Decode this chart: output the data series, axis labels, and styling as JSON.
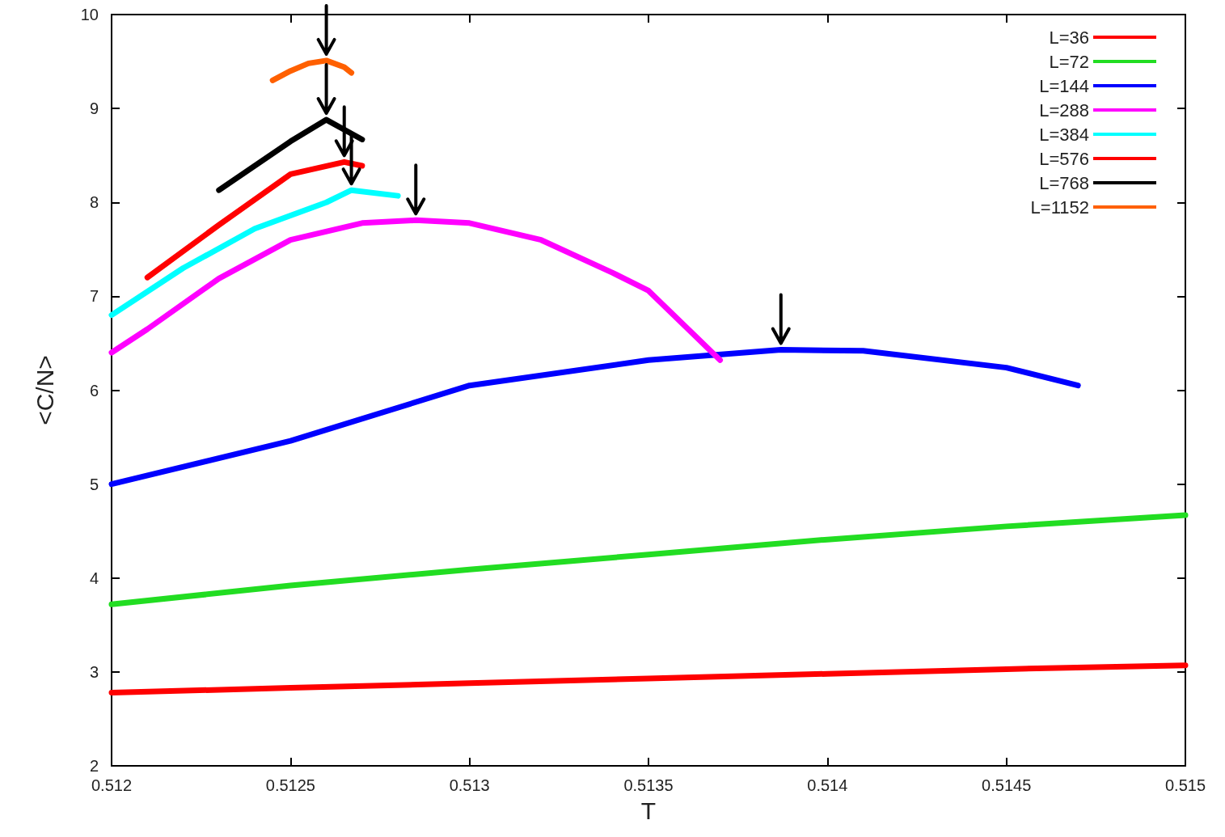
{
  "chart_data": {
    "type": "line",
    "xlabel": "T",
    "ylabel": "<C/N>",
    "xlim": [
      0.512,
      0.515
    ],
    "xticks": [
      0.512,
      0.5125,
      0.513,
      0.5135,
      0.514,
      0.5145,
      0.515
    ],
    "ylim": [
      2,
      10
    ],
    "yticks": [
      2,
      3,
      4,
      5,
      6,
      7,
      8,
      9,
      10
    ],
    "grid": false,
    "legend": "top right",
    "marker": "none",
    "series": [
      {
        "name": "L=36",
        "color": "#ff0000",
        "x": [
          0.512,
          0.5125,
          0.513,
          0.5135,
          0.514,
          0.5145,
          0.515
        ],
        "values": [
          2.78,
          2.83,
          2.88,
          2.93,
          2.98,
          3.03,
          3.07
        ]
      },
      {
        "name": "L=72",
        "color": "#22dd22",
        "x": [
          0.512,
          0.5125,
          0.513,
          0.5135,
          0.514,
          0.5145,
          0.515
        ],
        "values": [
          3.72,
          3.92,
          4.09,
          4.25,
          4.41,
          4.55,
          4.67
        ]
      },
      {
        "name": "L=144",
        "color": "#0000ff",
        "x": [
          0.512,
          0.5125,
          0.513,
          0.5135,
          0.51387,
          0.5141,
          0.5145,
          0.5147
        ],
        "values": [
          5.0,
          5.46,
          6.05,
          6.32,
          6.43,
          6.42,
          6.24,
          6.05
        ]
      },
      {
        "name": "L=288",
        "color": "#ff00ff",
        "x": [
          0.512,
          0.5121,
          0.5123,
          0.5125,
          0.5127,
          0.51285,
          0.513,
          0.5132,
          0.5134,
          0.5135,
          0.5137
        ],
        "values": [
          6.4,
          6.65,
          7.19,
          7.6,
          7.78,
          7.81,
          7.78,
          7.6,
          7.25,
          7.06,
          6.32
        ]
      },
      {
        "name": "L=384",
        "color": "#00ffff",
        "x": [
          0.512,
          0.5122,
          0.5124,
          0.5126,
          0.51267,
          0.5128
        ],
        "values": [
          6.8,
          7.3,
          7.72,
          8.0,
          8.13,
          8.07
        ]
      },
      {
        "name": "L=576",
        "color": "#ff0000",
        "x": [
          0.5121,
          0.5123,
          0.5125,
          0.51265,
          0.5127
        ],
        "values": [
          7.2,
          7.76,
          8.3,
          8.43,
          8.39
        ]
      },
      {
        "name": "L=768",
        "color": "#000000",
        "x": [
          0.5123,
          0.5125,
          0.5126,
          0.5127
        ],
        "values": [
          8.13,
          8.65,
          8.88,
          8.67
        ]
      },
      {
        "name": "L=1152",
        "color": "#ff6000",
        "x": [
          0.51245,
          0.5125,
          0.51255,
          0.5126,
          0.51265,
          0.51267
        ],
        "values": [
          9.3,
          9.4,
          9.48,
          9.51,
          9.44,
          9.38
        ]
      }
    ]
  }
}
